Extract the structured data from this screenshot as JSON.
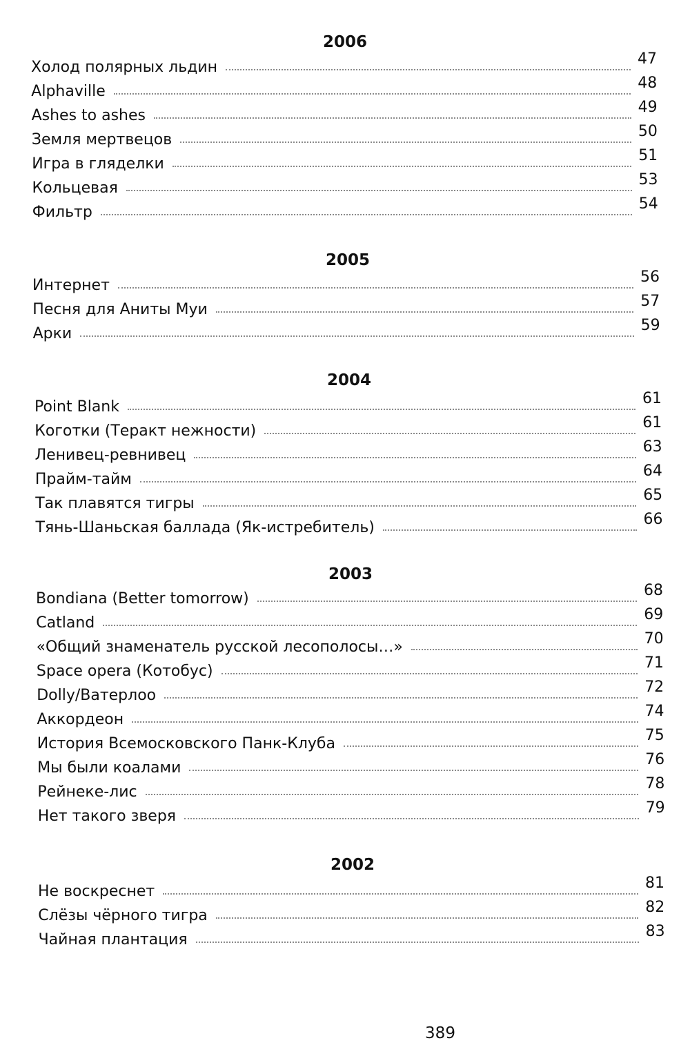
{
  "sections": [
    {
      "year": "2006",
      "entries": [
        {
          "title": "Холод полярных льдин",
          "page": "47"
        },
        {
          "title": "Alphaville",
          "page": "48"
        },
        {
          "title": "Ashes to ashes",
          "page": "49"
        },
        {
          "title": "Земля мертвецов",
          "page": "50"
        },
        {
          "title": "Игра в гляделки",
          "page": "51"
        },
        {
          "title": "Кольцевая",
          "page": "53"
        },
        {
          "title": "Фильтр",
          "page": "54"
        }
      ]
    },
    {
      "year": "2005",
      "entries": [
        {
          "title": "Интернет",
          "page": "56"
        },
        {
          "title": "Песня для Аниты Муи",
          "page": "57"
        },
        {
          "title": "Арки",
          "page": "59"
        }
      ]
    },
    {
      "year": "2004",
      "entries": [
        {
          "title": "Point Blank",
          "page": "61"
        },
        {
          "title": "Коготки (Теракт нежности)",
          "page": "61"
        },
        {
          "title": "Ленивец-ревнивец",
          "page": "63"
        },
        {
          "title": "Прайм-тайм",
          "page": "64"
        },
        {
          "title": "Так плавятся тигры",
          "page": "65"
        },
        {
          "title": "Тянь-Шаньская баллада (Як-истребитель)",
          "page": "66"
        }
      ]
    },
    {
      "year": "2003",
      "entries": [
        {
          "title": "Bondiana (Better tomorrow)",
          "page": "68"
        },
        {
          "title": "Catland",
          "page": "69"
        },
        {
          "title": "«Общий знаменатель русской лесополосы…»",
          "page": "70"
        },
        {
          "title": "Space opera (Котобус)",
          "page": "71"
        },
        {
          "title": "Dolly/Ватерлоо",
          "page": "72"
        },
        {
          "title": "Аккордеон",
          "page": "74"
        },
        {
          "title": "История Всемосковского Панк-Клуба",
          "page": "75"
        },
        {
          "title": "Мы были коалами",
          "page": "76"
        },
        {
          "title": "Рейнеке-лис",
          "page": "78"
        },
        {
          "title": "Нет такого зверя",
          "page": "79"
        }
      ]
    },
    {
      "year": "2002",
      "entries": [
        {
          "title": "Не воскреснет",
          "page": "81"
        },
        {
          "title": "Слёзы чёрного тигра",
          "page": "82"
        },
        {
          "title": "Чайная плантация",
          "page": "83"
        }
      ]
    }
  ],
  "page_number": "389"
}
